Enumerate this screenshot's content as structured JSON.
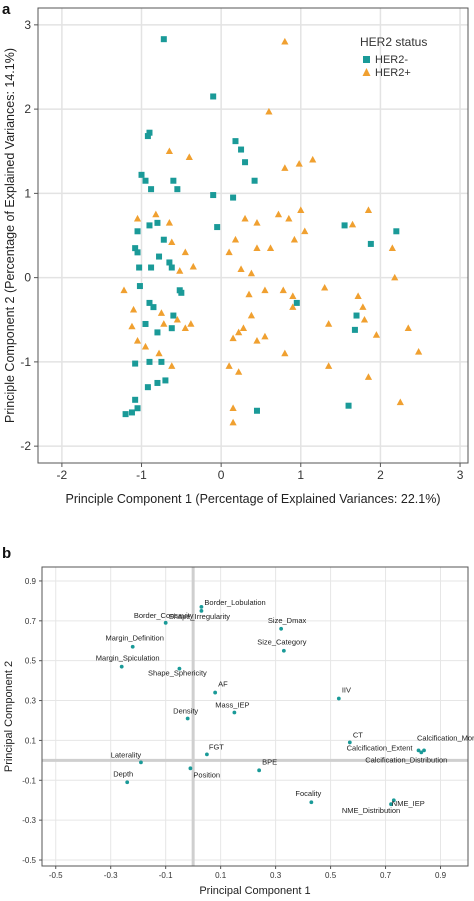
{
  "chart_data": [
    {
      "panel": "a",
      "type": "scatter",
      "title": "",
      "xlabel": "Principle Component 1 (Percentage of Explained Variances: 22.1%)",
      "ylabel": "Principle Component  2 (Percentage of Explained Variances: 14.1%)",
      "xlim": [
        -2.3,
        3.1
      ],
      "ylim": [
        -2.2,
        3.2
      ],
      "xticks": [
        -2,
        -1,
        0,
        1,
        2,
        3
      ],
      "yticks": [
        -2,
        -1,
        0,
        1,
        2,
        3
      ],
      "grid": true,
      "legend": {
        "title": "HER2 status",
        "placement": "top-right"
      },
      "series": [
        {
          "name": "HER2-",
          "marker": "square",
          "color": "#1a9a98",
          "points": [
            [
              -0.72,
              2.83
            ],
            [
              -0.1,
              2.15
            ],
            [
              -0.9,
              1.72
            ],
            [
              -0.92,
              1.68
            ],
            [
              -1.0,
              1.22
            ],
            [
              -0.95,
              1.15
            ],
            [
              -0.88,
              1.05
            ],
            [
              -0.6,
              1.15
            ],
            [
              -0.55,
              1.05
            ],
            [
              0.18,
              1.62
            ],
            [
              0.25,
              1.52
            ],
            [
              0.3,
              1.37
            ],
            [
              0.42,
              1.15
            ],
            [
              -0.1,
              0.98
            ],
            [
              0.15,
              0.95
            ],
            [
              -0.05,
              0.6
            ],
            [
              -1.05,
              0.55
            ],
            [
              -1.08,
              0.35
            ],
            [
              -1.05,
              0.3
            ],
            [
              -1.03,
              0.12
            ],
            [
              -0.9,
              0.62
            ],
            [
              -0.8,
              0.65
            ],
            [
              -0.72,
              0.45
            ],
            [
              -0.78,
              0.25
            ],
            [
              -0.65,
              0.18
            ],
            [
              -0.62,
              0.12
            ],
            [
              -0.88,
              0.12
            ],
            [
              -1.02,
              -0.1
            ],
            [
              -0.9,
              -0.3
            ],
            [
              -0.85,
              -0.35
            ],
            [
              -0.6,
              -0.45
            ],
            [
              -0.52,
              -0.15
            ],
            [
              -0.5,
              -0.18
            ],
            [
              -0.95,
              -0.55
            ],
            [
              -0.8,
              -0.65
            ],
            [
              -0.62,
              -0.6
            ],
            [
              -1.08,
              -1.02
            ],
            [
              -0.9,
              -1.0
            ],
            [
              -0.75,
              -1.0
            ],
            [
              -0.7,
              -1.22
            ],
            [
              -0.8,
              -1.25
            ],
            [
              -0.92,
              -1.3
            ],
            [
              -1.08,
              -1.45
            ],
            [
              -1.05,
              -1.55
            ],
            [
              -1.12,
              -1.6
            ],
            [
              -1.2,
              -1.62
            ],
            [
              0.45,
              -1.58
            ],
            [
              0.95,
              -0.3
            ],
            [
              1.55,
              0.62
            ],
            [
              1.88,
              0.4
            ],
            [
              2.2,
              0.55
            ],
            [
              1.7,
              -0.45
            ],
            [
              1.68,
              -0.62
            ],
            [
              1.6,
              -1.52
            ]
          ]
        },
        {
          "name": "HER2+",
          "marker": "triangle",
          "color": "#f0a030",
          "points": [
            [
              0.8,
              2.8
            ],
            [
              0.6,
              1.97
            ],
            [
              -0.65,
              1.5
            ],
            [
              -0.4,
              1.43
            ],
            [
              0.8,
              1.3
            ],
            [
              0.98,
              1.35
            ],
            [
              1.15,
              1.4
            ],
            [
              -1.05,
              0.7
            ],
            [
              -0.82,
              0.75
            ],
            [
              -0.65,
              0.65
            ],
            [
              -0.62,
              0.42
            ],
            [
              -0.45,
              0.3
            ],
            [
              -0.52,
              0.08
            ],
            [
              -0.35,
              0.13
            ],
            [
              0.45,
              0.35
            ],
            [
              0.62,
              0.35
            ],
            [
              0.72,
              0.75
            ],
            [
              0.85,
              0.7
            ],
            [
              1.0,
              0.8
            ],
            [
              1.05,
              0.55
            ],
            [
              0.92,
              0.45
            ],
            [
              0.45,
              0.65
            ],
            [
              0.3,
              0.7
            ],
            [
              0.18,
              0.45
            ],
            [
              0.1,
              0.3
            ],
            [
              0.25,
              0.1
            ],
            [
              0.38,
              0.05
            ],
            [
              1.65,
              0.63
            ],
            [
              1.85,
              0.8
            ],
            [
              2.15,
              0.35
            ],
            [
              2.18,
              0.0
            ],
            [
              -1.22,
              -0.15
            ],
            [
              -1.1,
              -0.38
            ],
            [
              -1.12,
              -0.58
            ],
            [
              -1.05,
              -0.75
            ],
            [
              -0.95,
              -0.82
            ],
            [
              -0.75,
              -0.42
            ],
            [
              -0.72,
              -0.55
            ],
            [
              -0.55,
              -0.5
            ],
            [
              -0.45,
              -0.6
            ],
            [
              -0.38,
              -0.55
            ],
            [
              -0.78,
              -0.9
            ],
            [
              -0.62,
              -1.05
            ],
            [
              0.35,
              -0.2
            ],
            [
              0.38,
              -0.45
            ],
            [
              0.28,
              -0.6
            ],
            [
              0.22,
              -0.65
            ],
            [
              0.15,
              -0.72
            ],
            [
              0.55,
              -0.15
            ],
            [
              0.78,
              -0.15
            ],
            [
              0.9,
              -0.22
            ],
            [
              0.9,
              -0.35
            ],
            [
              0.55,
              -0.7
            ],
            [
              0.45,
              -0.75
            ],
            [
              0.8,
              -0.9
            ],
            [
              0.1,
              -1.05
            ],
            [
              0.22,
              -1.12
            ],
            [
              1.3,
              -0.12
            ],
            [
              1.35,
              -0.55
            ],
            [
              1.72,
              -0.22
            ],
            [
              1.78,
              -0.35
            ],
            [
              1.8,
              -0.5
            ],
            [
              1.95,
              -0.68
            ],
            [
              2.35,
              -0.6
            ],
            [
              2.48,
              -0.88
            ],
            [
              1.35,
              -1.05
            ],
            [
              1.85,
              -1.18
            ],
            [
              2.25,
              -1.48
            ],
            [
              0.15,
              -1.72
            ],
            [
              0.15,
              -1.55
            ]
          ]
        }
      ]
    },
    {
      "panel": "b",
      "type": "scatter",
      "title": "",
      "xlabel": "Principal Component 1",
      "ylabel": "Principal Component 2",
      "xlim": [
        -0.55,
        1.0
      ],
      "ylim": [
        -0.53,
        0.97
      ],
      "xticks": [
        -0.5,
        -0.3,
        -0.1,
        0.1,
        0.3,
        0.5,
        0.7,
        0.9
      ],
      "yticks": [
        -0.5,
        -0.3,
        -0.1,
        0.1,
        0.3,
        0.5,
        0.7,
        0.9
      ],
      "xtick_labels": [
        "-0.5",
        "-0.3",
        "-0.1",
        "0.1",
        "0.3",
        "0.5",
        "0.7",
        "0.9"
      ],
      "ytick_labels": [
        "-0.5",
        "-0.3",
        "-0.1",
        "0.1",
        "0.3",
        "0.5",
        "0.7",
        "0.9"
      ],
      "grid": true,
      "marker_color": "#1a9a98",
      "points": [
        {
          "label": "Border_Lobulation",
          "x": 0.03,
          "y": 0.77
        },
        {
          "label": "Border_Concavity",
          "x": -0.1,
          "y": 0.69
        },
        {
          "label": "Shape_Irregularity",
          "x": 0.03,
          "y": 0.75
        },
        {
          "label": "Size_Dmax",
          "x": 0.32,
          "y": 0.66
        },
        {
          "label": "Margin_Definition",
          "x": -0.22,
          "y": 0.57
        },
        {
          "label": "Size_Category",
          "x": 0.33,
          "y": 0.55
        },
        {
          "label": "Margin_Spiculation",
          "x": -0.26,
          "y": 0.47
        },
        {
          "label": "Shape_Sphericity",
          "x": -0.05,
          "y": 0.46
        },
        {
          "label": "AF",
          "x": 0.08,
          "y": 0.34
        },
        {
          "label": "IIV",
          "x": 0.53,
          "y": 0.31
        },
        {
          "label": "Mass_IEP",
          "x": 0.15,
          "y": 0.24
        },
        {
          "label": "Density",
          "x": -0.02,
          "y": 0.21
        },
        {
          "label": "CT",
          "x": 0.57,
          "y": 0.09
        },
        {
          "label": "Calcification_Morphology",
          "x": 0.84,
          "y": 0.05
        },
        {
          "label": "Calcification_Extent",
          "x": 0.82,
          "y": 0.05
        },
        {
          "label": "Calcification_Distribution",
          "x": 0.83,
          "y": 0.04
        },
        {
          "label": "FGT",
          "x": 0.05,
          "y": 0.03
        },
        {
          "label": "Laterality",
          "x": -0.19,
          "y": -0.01
        },
        {
          "label": "BPE",
          "x": 0.24,
          "y": -0.05
        },
        {
          "label": "Position",
          "x": -0.01,
          "y": -0.04
        },
        {
          "label": "Depth",
          "x": -0.24,
          "y": -0.11
        },
        {
          "label": "Focality",
          "x": 0.43,
          "y": -0.21
        },
        {
          "label": "NME_Distribution",
          "x": 0.72,
          "y": -0.22
        },
        {
          "label": "NME_IEP",
          "x": 0.73,
          "y": -0.2
        }
      ]
    }
  ],
  "panel_labels": {
    "a": "a",
    "b": "b"
  }
}
